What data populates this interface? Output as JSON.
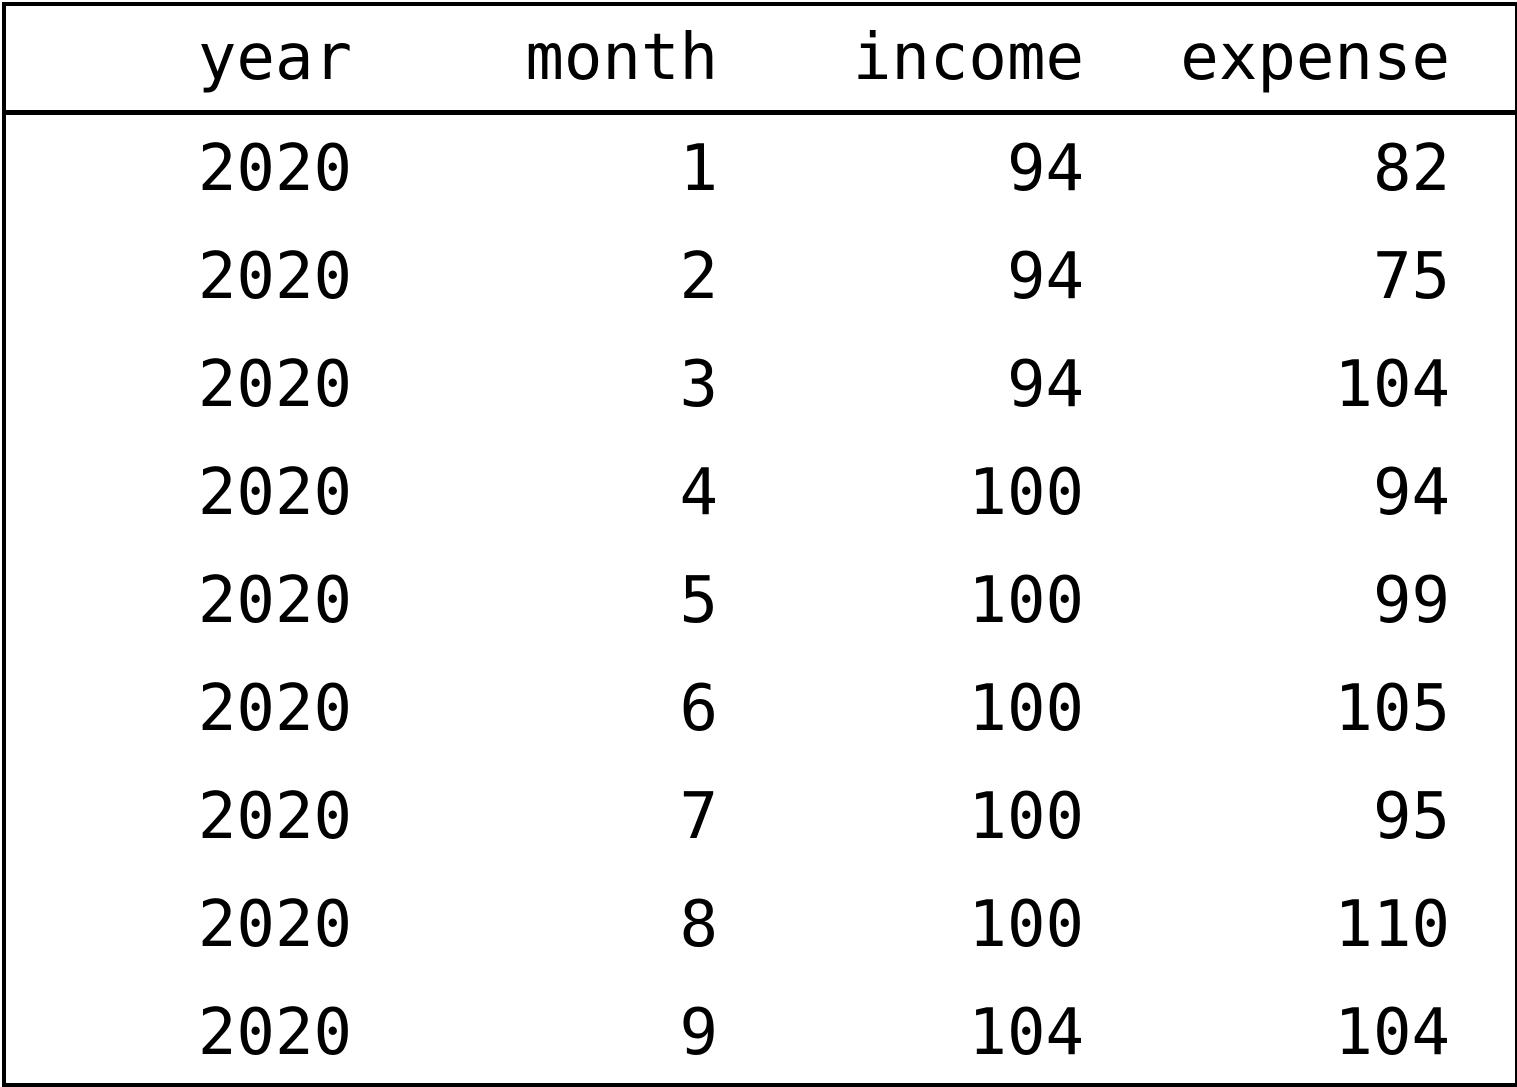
{
  "chart_data": {
    "type": "table",
    "columns": [
      "year",
      "month",
      "income",
      "expense"
    ],
    "rows": [
      [
        2020,
        1,
        94,
        82
      ],
      [
        2020,
        2,
        94,
        75
      ],
      [
        2020,
        3,
        94,
        104
      ],
      [
        2020,
        4,
        100,
        94
      ],
      [
        2020,
        5,
        100,
        99
      ],
      [
        2020,
        6,
        100,
        105
      ],
      [
        2020,
        7,
        100,
        95
      ],
      [
        2020,
        8,
        100,
        110
      ],
      [
        2020,
        9,
        104,
        104
      ]
    ]
  },
  "colors": {
    "text": "#000000",
    "background": "#ffffff",
    "border": "#000000"
  }
}
